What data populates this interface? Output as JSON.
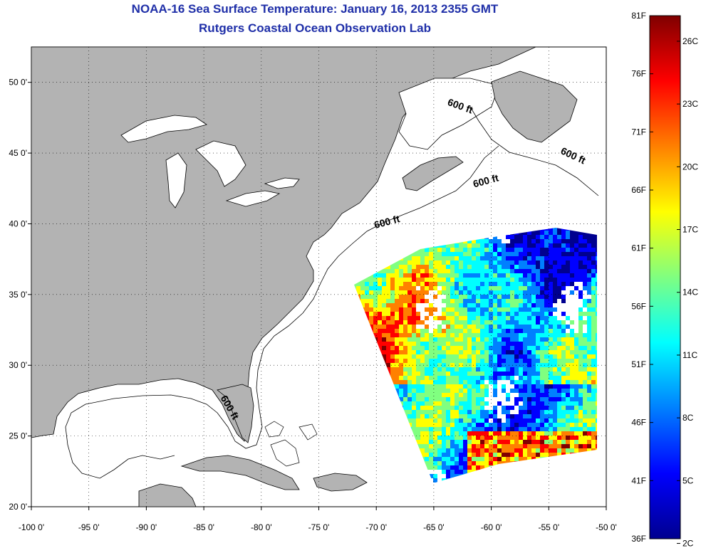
{
  "title": "NOAA-16 Sea Surface Temperature:  January 16, 2013 2355 GMT",
  "subtitle": "Rutgers Coastal Ocean Observation Lab",
  "map": {
    "lon_range": [
      -100,
      -50
    ],
    "lat_range": [
      20,
      52.5
    ],
    "x_ticks": [
      "-100 0'",
      "-95 0'",
      "-90 0'",
      "-85 0'",
      "-80 0'",
      "-75 0'",
      "-70 0'",
      "-65 0'",
      "-60 0'",
      "-55 0'",
      "-50 0'"
    ],
    "y_ticks": [
      "50 0'",
      "45 0'",
      "40 0'",
      "35 0'",
      "30 0'",
      "25 0'",
      "20 0'"
    ],
    "contour_labels": [
      {
        "text": "600 ft",
        "lon": -62.8,
        "lat": 48.1
      },
      {
        "text": "600 ft",
        "lon": -53.0,
        "lat": 44.6
      },
      {
        "text": "600 ft",
        "lon": -60.4,
        "lat": 42.8
      },
      {
        "text": "600 ft",
        "lon": -69.0,
        "lat": 39.9
      },
      {
        "text": "600 ft",
        "lon": -83.0,
        "lat": 26.9
      }
    ],
    "land_color": "#b3b3b3",
    "ocean_color": "#ffffff"
  },
  "colorbar": {
    "labels_f": [
      "81F",
      "76F",
      "71F",
      "66F",
      "61F",
      "56F",
      "51F",
      "46F",
      "41F",
      "36F"
    ],
    "labels_c": [
      "26C",
      "23C",
      "20C",
      "17C",
      "14C",
      "11C",
      "8C",
      "5C",
      "2C"
    ],
    "min_f": 36,
    "max_f": 81,
    "colors": [
      "#00008f",
      "#0000ff",
      "#0080ff",
      "#00ffff",
      "#80ff80",
      "#ffff00",
      "#ff8000",
      "#ff0000",
      "#800000"
    ]
  }
}
